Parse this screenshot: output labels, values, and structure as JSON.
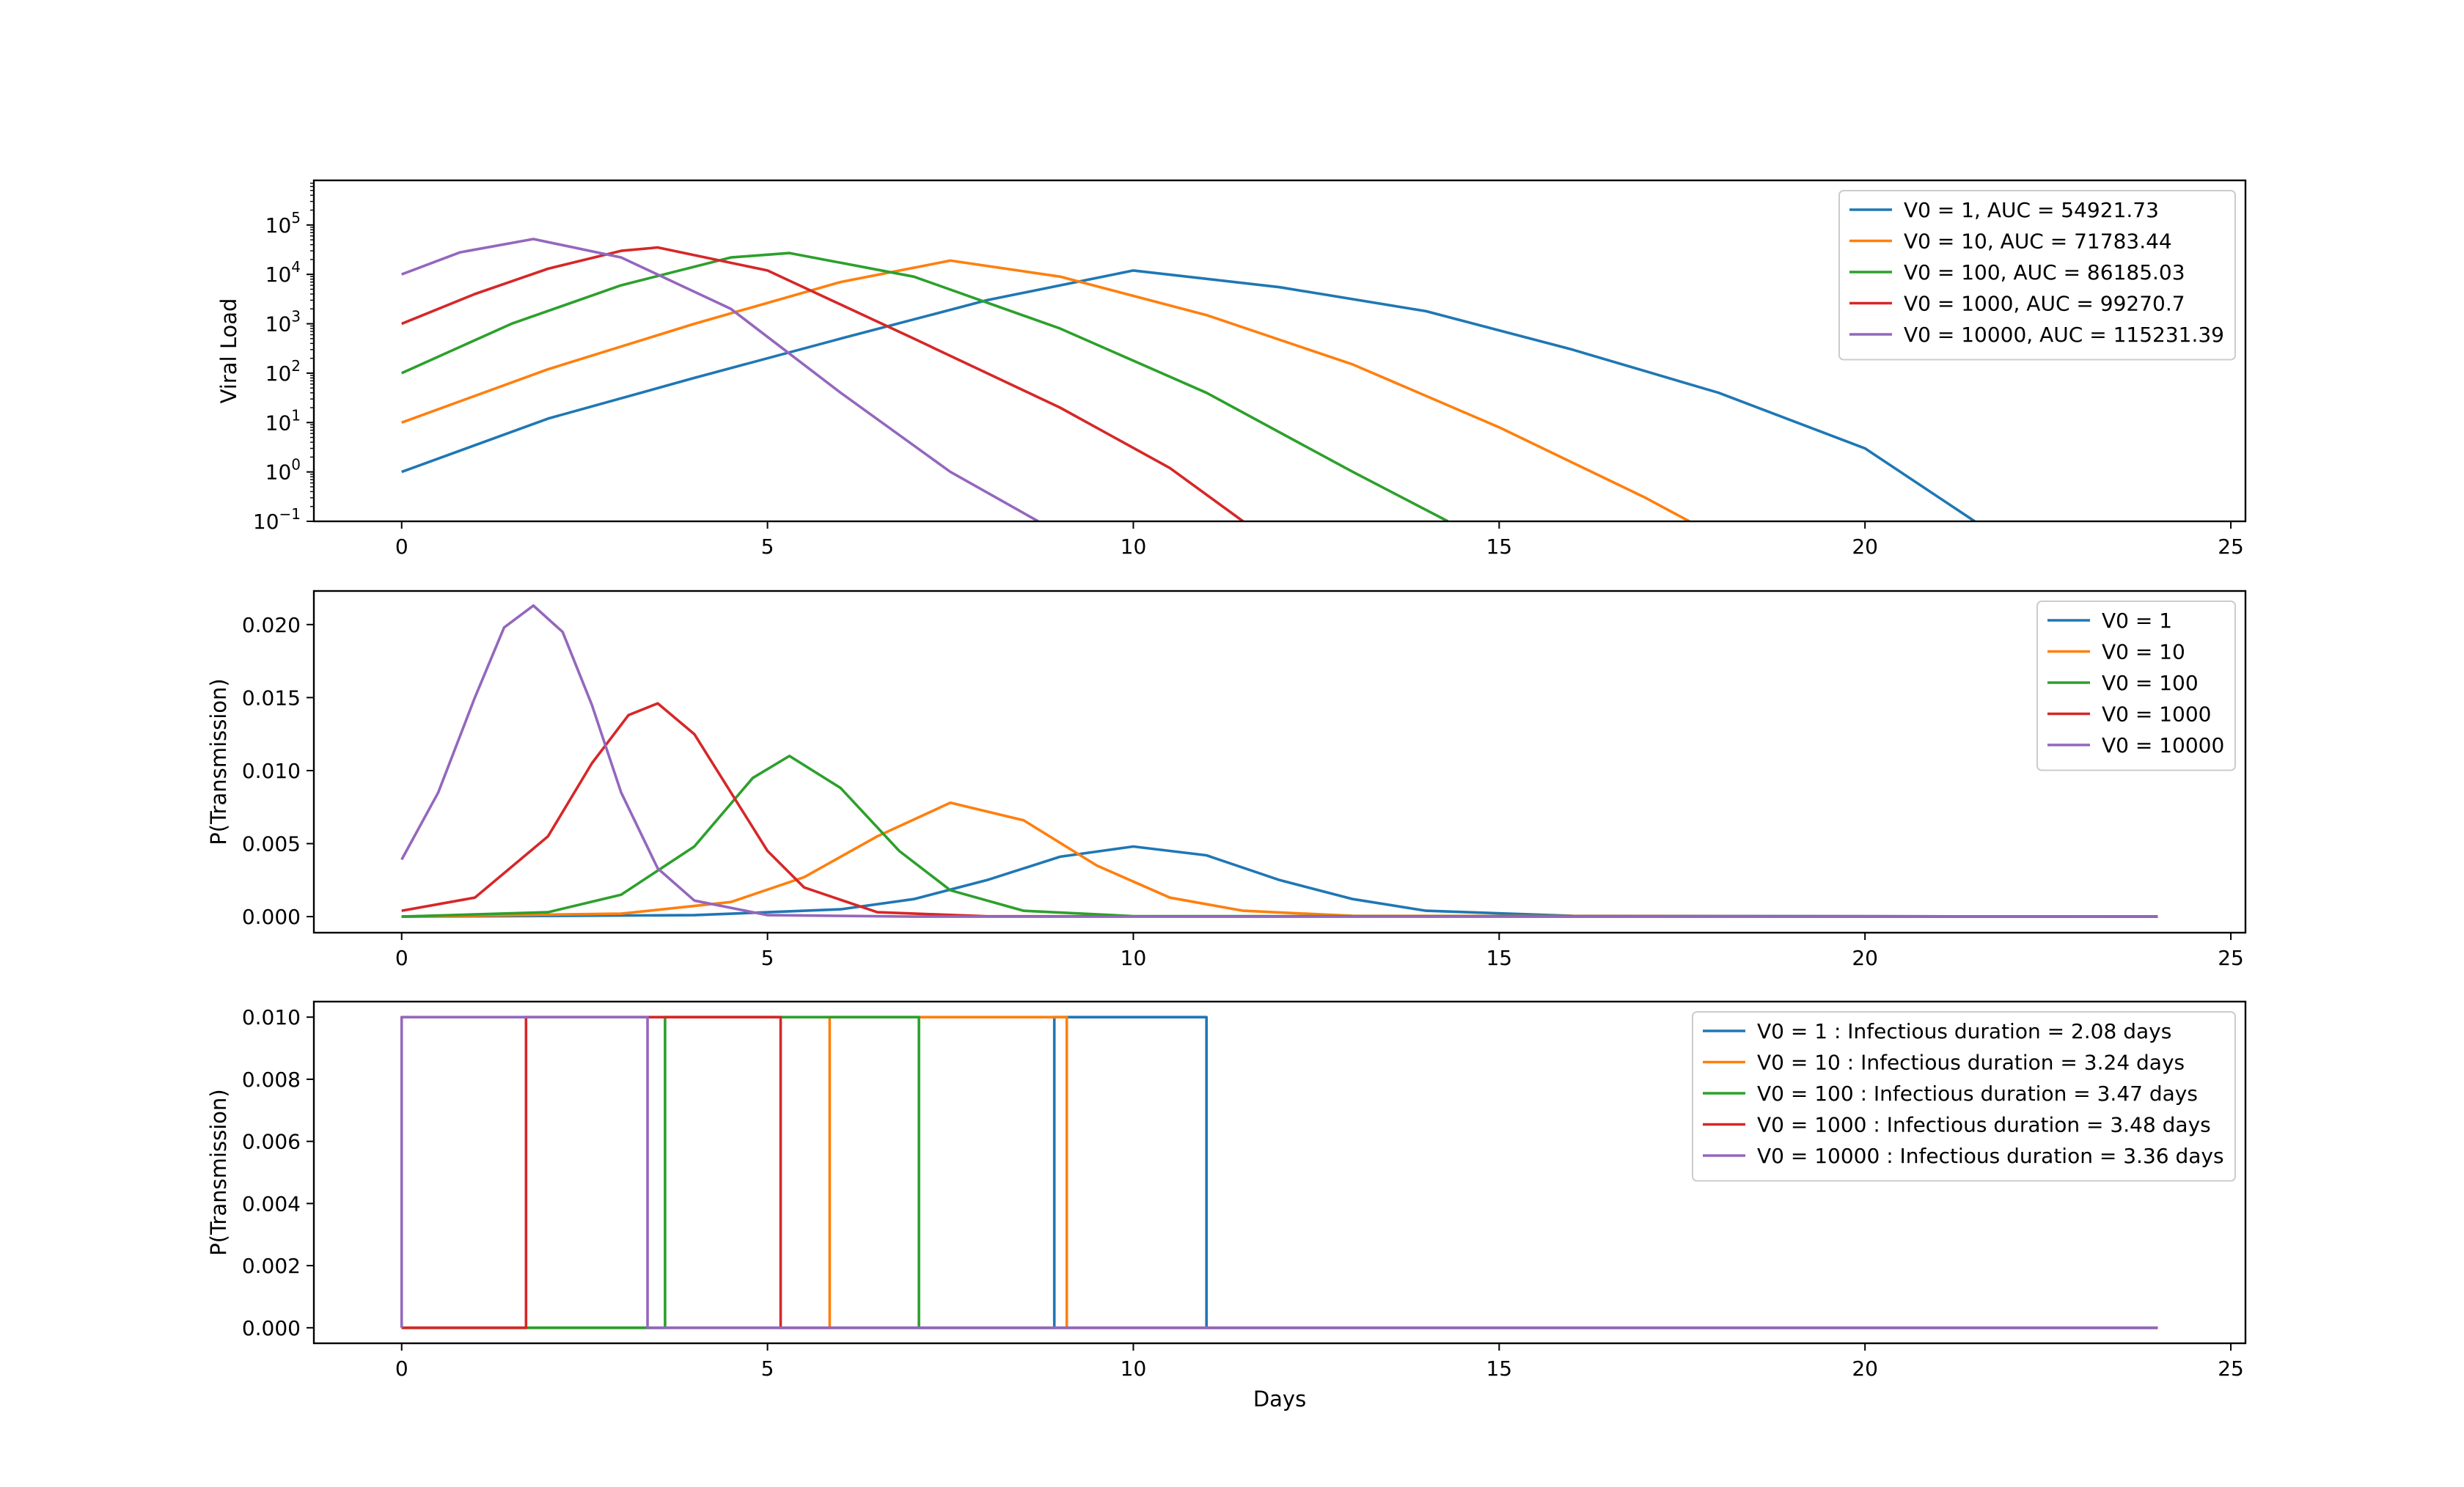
{
  "chart_data": [
    {
      "type": "line",
      "yscale": "log",
      "xlabel": "",
      "ylabel": "Viral Load",
      "xlim": [
        -1.2,
        25.2
      ],
      "ylim": [
        0.1,
        800000
      ],
      "xticks": [
        0,
        5,
        10,
        15,
        20,
        25
      ],
      "xtick_labels": [
        "0",
        "5",
        "10",
        "15",
        "20",
        "25"
      ],
      "yticks": [
        0.1,
        1,
        10,
        100,
        1000,
        10000,
        100000
      ],
      "ytick_labels": [
        {
          "base": "10",
          "exp": "−1"
        },
        {
          "base": "10",
          "exp": "0"
        },
        {
          "base": "10",
          "exp": "1"
        },
        {
          "base": "10",
          "exp": "2"
        },
        {
          "base": "10",
          "exp": "3"
        },
        {
          "base": "10",
          "exp": "4"
        },
        {
          "base": "10",
          "exp": "5"
        }
      ],
      "legend_position": "top-right",
      "grid": false,
      "series": [
        {
          "name": "V0 = 1, AUC = 54921.73",
          "color": "#1f77b4",
          "x": [
            0,
            2,
            4,
            6,
            8,
            10,
            12,
            14,
            16,
            18,
            20,
            21.5
          ],
          "y": [
            1,
            12,
            80,
            500,
            3000,
            12000,
            5500,
            1800,
            300,
            40,
            3,
            0.1
          ]
        },
        {
          "name": "V0 = 10, AUC = 71783.44",
          "color": "#ff7f0e",
          "x": [
            0,
            2,
            4,
            6,
            7.5,
            9,
            11,
            13,
            15,
            17,
            17.6
          ],
          "y": [
            10,
            120,
            1000,
            7000,
            19000,
            9000,
            1500,
            150,
            8,
            0.3,
            0.1
          ]
        },
        {
          "name": "V0 = 100, AUC = 86185.03",
          "color": "#2ca02c",
          "x": [
            0,
            1.5,
            3,
            4.5,
            5.3,
            7,
            9,
            11,
            13,
            14.3
          ],
          "y": [
            100,
            1000,
            6000,
            22000,
            27000,
            9000,
            800,
            40,
            1,
            0.1
          ]
        },
        {
          "name": "V0 = 1000, AUC = 99270.7",
          "color": "#d62728",
          "x": [
            0,
            1,
            2,
            3,
            3.5,
            5,
            7,
            9,
            10.5,
            11.5
          ],
          "y": [
            1000,
            4000,
            13000,
            30000,
            35000,
            12000,
            500,
            20,
            1.2,
            0.1
          ]
        },
        {
          "name": "V0 = 10000, AUC = 115231.39",
          "color": "#9467bd",
          "x": [
            0,
            0.8,
            1.8,
            3,
            4.5,
            6,
            7.5,
            8.7
          ],
          "y": [
            10000,
            28000,
            52000,
            22000,
            2000,
            40,
            1,
            0.1
          ]
        }
      ]
    },
    {
      "type": "line",
      "xlabel": "",
      "ylabel": "P(Transmission)",
      "xlim": [
        -1.2,
        25.2
      ],
      "ylim": [
        -0.0011,
        0.0223
      ],
      "xticks": [
        0,
        5,
        10,
        15,
        20,
        25
      ],
      "xtick_labels": [
        "0",
        "5",
        "10",
        "15",
        "20",
        "25"
      ],
      "yticks": [
        0,
        0.005,
        0.01,
        0.015,
        0.02
      ],
      "ytick_labels": [
        "0.000",
        "0.005",
        "0.010",
        "0.015",
        "0.020"
      ],
      "legend_position": "top-right",
      "grid": false,
      "series": [
        {
          "name": "V0 = 1",
          "color": "#1f77b4",
          "x": [
            0,
            4,
            6,
            7,
            8,
            9,
            10,
            11,
            12,
            13,
            14,
            16,
            24
          ],
          "y": [
            0,
            0.0001,
            0.0005,
            0.0012,
            0.0025,
            0.0041,
            0.0048,
            0.0042,
            0.0025,
            0.0012,
            0.0004,
            5e-05,
            0
          ]
        },
        {
          "name": "V0 = 10",
          "color": "#ff7f0e",
          "x": [
            0,
            3,
            4.5,
            5.5,
            6.5,
            7.5,
            8.5,
            9.5,
            10.5,
            11.5,
            13,
            24
          ],
          "y": [
            0,
            0.0002,
            0.001,
            0.0027,
            0.0055,
            0.0078,
            0.0066,
            0.0035,
            0.0013,
            0.0004,
            5e-05,
            0
          ]
        },
        {
          "name": "V0 = 100",
          "color": "#2ca02c",
          "x": [
            0,
            2,
            3,
            4,
            4.8,
            5.3,
            6,
            6.8,
            7.5,
            8.5,
            10,
            24
          ],
          "y": [
            0,
            0.0003,
            0.0015,
            0.0048,
            0.0095,
            0.011,
            0.0088,
            0.0045,
            0.0018,
            0.0004,
            3e-05,
            0
          ]
        },
        {
          "name": "V0 = 1000",
          "color": "#d62728",
          "x": [
            0,
            1,
            2,
            2.6,
            3.1,
            3.5,
            4,
            4.5,
            5,
            5.5,
            6.5,
            8,
            24
          ],
          "y": [
            0.0004,
            0.0013,
            0.0055,
            0.0105,
            0.0138,
            0.0146,
            0.0125,
            0.0085,
            0.0045,
            0.002,
            0.0003,
            2e-05,
            0
          ]
        },
        {
          "name": "V0 = 10000",
          "color": "#9467bd",
          "x": [
            0,
            0.5,
            1,
            1.4,
            1.8,
            2.2,
            2.6,
            3,
            3.5,
            4,
            5,
            7,
            24
          ],
          "y": [
            0.0039,
            0.0085,
            0.015,
            0.0198,
            0.0213,
            0.0195,
            0.0145,
            0.0085,
            0.0033,
            0.0011,
            0.0001,
            0,
            0
          ]
        }
      ]
    },
    {
      "type": "line",
      "xlabel": "Days",
      "ylabel": "P(Transmission)",
      "xlim": [
        -1.2,
        25.2
      ],
      "ylim": [
        -0.0005,
        0.0105
      ],
      "xticks": [
        0,
        5,
        10,
        15,
        20,
        25
      ],
      "xtick_labels": [
        "0",
        "5",
        "10",
        "15",
        "20",
        "25"
      ],
      "yticks": [
        0,
        0.002,
        0.004,
        0.006,
        0.008,
        0.01
      ],
      "ytick_labels": [
        "0.000",
        "0.002",
        "0.004",
        "0.006",
        "0.008",
        "0.010"
      ],
      "legend_position": "top-right",
      "grid": false,
      "series": [
        {
          "name": "V0 = 1 : Infectious duration = 2.08 days",
          "color": "#1f77b4",
          "x": [
            0,
            8.92,
            8.92,
            11.0,
            11.0,
            24
          ],
          "y": [
            0,
            0,
            0.01,
            0.01,
            0,
            0
          ]
        },
        {
          "name": "V0 = 10 : Infectious duration = 3.24 days",
          "color": "#ff7f0e",
          "x": [
            0,
            5.85,
            5.85,
            9.09,
            9.09,
            24
          ],
          "y": [
            0,
            0,
            0.01,
            0.01,
            0,
            0
          ]
        },
        {
          "name": "V0 = 100 : Infectious duration = 3.47 days",
          "color": "#2ca02c",
          "x": [
            0,
            3.6,
            3.6,
            7.07,
            7.07,
            24
          ],
          "y": [
            0,
            0,
            0.01,
            0.01,
            0,
            0
          ]
        },
        {
          "name": "V0 = 1000 : Infectious duration = 3.48 days",
          "color": "#d62728",
          "x": [
            0,
            1.7,
            1.7,
            5.18,
            5.18,
            24
          ],
          "y": [
            0,
            0,
            0.01,
            0.01,
            0,
            0
          ]
        },
        {
          "name": "V0 = 10000 : Infectious duration = 3.36 days",
          "color": "#9467bd",
          "x": [
            0,
            0,
            3.36,
            3.36,
            24
          ],
          "y": [
            0,
            0.01,
            0.01,
            0,
            0
          ]
        }
      ]
    }
  ]
}
